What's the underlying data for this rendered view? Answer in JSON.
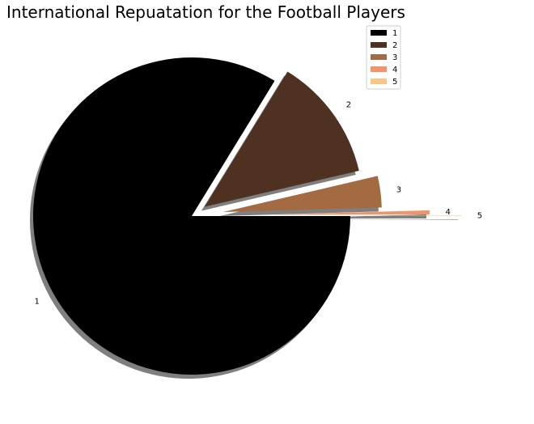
{
  "chart_data": {
    "type": "pie",
    "title": "International Repuatation for the Football Players",
    "categories": [
      "1",
      "2",
      "3",
      "4",
      "5"
    ],
    "values": [
      83.8,
      12.6,
      3.2,
      0.4,
      0.05
    ],
    "colors": [
      "#000000",
      "#4f3121",
      "#a46a42",
      "#f0956a",
      "#fdc583"
    ],
    "explode": [
      0.0,
      0.1,
      0.2,
      0.5,
      0.7
    ],
    "shadow": true,
    "start_angle_deg": 0,
    "legend": {
      "position": "top-right",
      "entries": [
        "1",
        "2",
        "3",
        "4",
        "5"
      ]
    }
  }
}
